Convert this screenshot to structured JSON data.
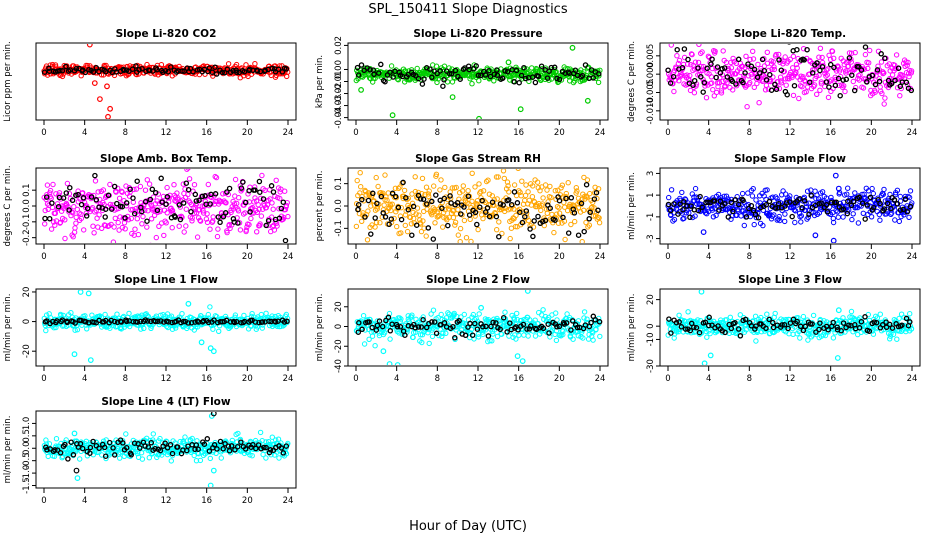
{
  "figure": {
    "title": "SPL_150411  Slope Diagnostics",
    "xlabel": "Hour of Day (UTC)"
  },
  "chart_data": [
    {
      "type": "scatter",
      "title": "Slope Li-820 CO2",
      "ylabel": "Licor ppm per min.",
      "color": "#ff0000",
      "xlim": [
        0,
        24
      ],
      "xticks": [
        0,
        4,
        8,
        12,
        16,
        20,
        24
      ],
      "ylim": [
        -1.55,
        0.85
      ],
      "yticks": [],
      "series": [
        {
          "name": "samples",
          "center": 0,
          "spread": 0.08,
          "outliers": [
            [
              4.5,
              0.8
            ],
            [
              5.0,
              -0.4
            ],
            [
              5.5,
              -0.9
            ],
            [
              6.3,
              -1.45
            ],
            [
              6.5,
              -1.2
            ],
            [
              6.2,
              -0.5
            ]
          ]
        },
        {
          "name": "overlay",
          "color": "#000000",
          "center": 0,
          "spread": 0.05
        }
      ]
    },
    {
      "type": "scatter",
      "title": "Slope Li-820 Pressure",
      "ylabel": "kPa per min.",
      "color": "#00cc00",
      "xlim": [
        0,
        24
      ],
      "xticks": [
        0,
        4,
        8,
        12,
        16,
        20,
        24
      ],
      "ylim": [
        -0.042,
        0.022
      ],
      "yticks": [
        0.02,
        0.0,
        -0.01,
        -0.02,
        -0.03,
        -0.04
      ],
      "ytick_labels": [
        "0.02",
        "0.00",
        "-0.01",
        "-0.02",
        "-0.03",
        "-0.04"
      ],
      "series": [
        {
          "name": "samples",
          "center": -0.004,
          "spread": 0.003,
          "outliers": [
            [
              0.5,
              -0.017
            ],
            [
              3.6,
              -0.038
            ],
            [
              9.5,
              -0.023
            ],
            [
              12.1,
              -0.041
            ],
            [
              16.2,
              -0.033
            ],
            [
              22.8,
              -0.026
            ],
            [
              15.0,
              0.006
            ],
            [
              21.3,
              0.018
            ]
          ]
        },
        {
          "name": "overlay",
          "color": "#000000",
          "center": -0.003,
          "spread": 0.004
        }
      ]
    },
    {
      "type": "scatter",
      "title": "Slope Li-820 Temp.",
      "ylabel": "degrees C per min.",
      "color": "#ff00ff",
      "xlim": [
        0,
        24
      ],
      "xticks": [
        0,
        4,
        8,
        12,
        16,
        20,
        24
      ],
      "ylim": [
        -0.0125,
        0.0085
      ],
      "yticks": [
        0.005,
        0.0,
        -0.005,
        -0.01
      ],
      "ytick_labels": [
        "0.005",
        "0.000",
        "-0.005",
        "-0.010"
      ],
      "series": [
        {
          "name": "samples",
          "center": 0,
          "spread": 0.003,
          "outliers": []
        },
        {
          "name": "overlay",
          "color": "#000000",
          "center": 0,
          "spread": 0.003
        }
      ]
    },
    {
      "type": "scatter",
      "title": "Slope Amb. Box Temp.",
      "ylabel": "degrees C per min.",
      "color": "#ff00ff",
      "xlim": [
        0,
        24
      ],
      "xticks": [
        0,
        4,
        8,
        12,
        16,
        20,
        24
      ],
      "ylim": [
        -0.24,
        0.24
      ],
      "yticks": [
        0.1,
        0.0,
        -0.1,
        -0.2
      ],
      "ytick_labels": [
        "0.1",
        "0.0",
        "-0.1",
        "-0.2"
      ],
      "series": [
        {
          "name": "samples",
          "center": 0,
          "spread": 0.09,
          "outliers": []
        },
        {
          "name": "overlay",
          "color": "#000000",
          "center": 0,
          "spread": 0.08
        }
      ]
    },
    {
      "type": "scatter",
      "title": "Slope Gas Stream RH",
      "ylabel": "percent per min.",
      "color": "#ffa500",
      "xlim": [
        0,
        24
      ],
      "xticks": [
        0,
        4,
        8,
        12,
        16,
        20,
        24
      ],
      "ylim": [
        -0.17,
        0.17
      ],
      "yticks": [
        0.1,
        0.0,
        -0.1
      ],
      "ytick_labels": [
        "0.1",
        "0.0",
        "-0.1"
      ],
      "series": [
        {
          "name": "samples",
          "center": 0,
          "spread": 0.06,
          "outliers": []
        },
        {
          "name": "overlay",
          "color": "#000000",
          "center": 0,
          "spread": 0.06
        }
      ]
    },
    {
      "type": "scatter",
      "title": "Slope Sample Flow",
      "ylabel": "ml/min per min.",
      "color": "#0000ff",
      "xlim": [
        0,
        24
      ],
      "xticks": [
        0,
        4,
        8,
        12,
        16,
        20,
        24
      ],
      "ylim": [
        -3.5,
        3.5
      ],
      "yticks": [
        3,
        1,
        -1,
        -3
      ],
      "ytick_labels": [
        "3",
        "1",
        "-1",
        "-3"
      ],
      "series": [
        {
          "name": "samples",
          "center": 0,
          "spread": 0.7,
          "outliers": [
            [
              3.5,
              -2.4
            ],
            [
              14.5,
              -2.7
            ],
            [
              16.3,
              -3.2
            ],
            [
              16.5,
              2.8
            ],
            [
              16.8,
              1.6
            ]
          ]
        },
        {
          "name": "overlay",
          "color": "#000000",
          "center": 0,
          "spread": 0.5
        }
      ]
    },
    {
      "type": "scatter",
      "title": "Slope Line 1 Flow",
      "ylabel": "ml/min per min.",
      "color": "#00ffff",
      "xlim": [
        0,
        24
      ],
      "xticks": [
        0,
        4,
        8,
        12,
        16,
        20,
        24
      ],
      "ylim": [
        -30,
        22
      ],
      "yticks": [
        20,
        0,
        -20
      ],
      "ytick_labels": [
        "20",
        "0",
        "-20"
      ],
      "series": [
        {
          "name": "samples",
          "center": 0,
          "spread": 2.5,
          "outliers": [
            [
              3.6,
              20
            ],
            [
              4.4,
              19
            ],
            [
              3.0,
              -22
            ],
            [
              4.6,
              -26
            ],
            [
              15.5,
              -14
            ],
            [
              16.4,
              -18
            ],
            [
              16.7,
              -20
            ],
            [
              14.2,
              12
            ]
          ]
        },
        {
          "name": "overlay",
          "color": "#000000",
          "center": 0,
          "spread": 0.5
        }
      ]
    },
    {
      "type": "scatter",
      "title": "Slope Line 2 Flow",
      "ylabel": "ml/min per min.",
      "color": "#00ffff",
      "xlim": [
        0,
        24
      ],
      "xticks": [
        0,
        4,
        8,
        12,
        16,
        20,
        24
      ],
      "ylim": [
        -40,
        38
      ],
      "yticks": [
        20,
        0,
        -20,
        -40
      ],
      "ytick_labels": [
        "20",
        "0",
        "-20",
        "-40"
      ],
      "series": [
        {
          "name": "samples",
          "center": 0,
          "spread": 7,
          "outliers": [
            [
              3.3,
              -38
            ],
            [
              4.1,
              -39
            ],
            [
              2.7,
              -25
            ],
            [
              15.9,
              -30
            ],
            [
              16.4,
              -35
            ],
            [
              12.3,
              19
            ],
            [
              16.9,
              36
            ]
          ]
        },
        {
          "name": "overlay",
          "color": "#000000",
          "center": 0,
          "spread": 5
        }
      ]
    },
    {
      "type": "scatter",
      "title": "Slope Line 3 Flow",
      "ylabel": "ml/min per min.",
      "color": "#00ffff",
      "xlim": [
        0,
        24
      ],
      "xticks": [
        0,
        4,
        8,
        12,
        16,
        20,
        24
      ],
      "ylim": [
        -30,
        28
      ],
      "yticks": [
        20,
        0,
        -10,
        -30
      ],
      "ytick_labels": [
        "20",
        "0",
        "-10",
        "-30"
      ],
      "series": [
        {
          "name": "samples",
          "center": 0,
          "spread": 4,
          "outliers": [
            [
              3.3,
              26
            ],
            [
              3.6,
              -28
            ],
            [
              4.2,
              -22
            ],
            [
              16.7,
              -24
            ],
            [
              16.8,
              12
            ]
          ]
        },
        {
          "name": "overlay",
          "color": "#000000",
          "center": 0,
          "spread": 3
        }
      ]
    },
    {
      "type": "scatter",
      "title": "Slope Line 4 (LT) Flow",
      "ylabel": "ml/min per min.",
      "color": "#00ffff",
      "xlim": [
        0,
        24
      ],
      "xticks": [
        0,
        4,
        8,
        12,
        16,
        20,
        24
      ],
      "ylim": [
        -1.6,
        1.5
      ],
      "yticks": [
        1.0,
        0.5,
        0.0,
        -0.5,
        -1.0,
        -1.5
      ],
      "ytick_labels": [
        "1.0",
        "0.5",
        "0.0",
        "-0.5",
        "-1.0",
        "-1.5"
      ],
      "series": [
        {
          "name": "samples",
          "center": 0,
          "spread": 0.2,
          "outliers": [
            [
              3.3,
              -1.2
            ],
            [
              3.0,
              0.6
            ],
            [
              16.4,
              -1.5
            ],
            [
              16.7,
              -0.9
            ],
            [
              16.5,
              1.3
            ]
          ]
        },
        {
          "name": "overlay",
          "color": "#000000",
          "center": 0,
          "spread": 0.15,
          "outliers": [
            [
              16.7,
              1.4
            ],
            [
              3.2,
              -0.9
            ]
          ]
        }
      ]
    }
  ]
}
